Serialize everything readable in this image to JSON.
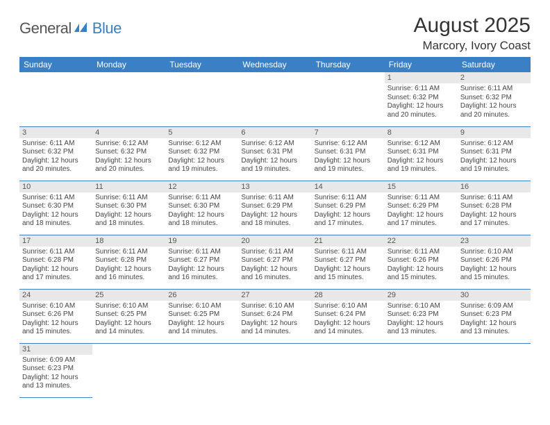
{
  "logo": {
    "general": "General",
    "blue": "Blue"
  },
  "title": "August 2025",
  "location": "Marcory, Ivory Coast",
  "header_bg": "#3b7fc4",
  "day_num_bg": "#e8e8e8",
  "weekdays": [
    "Sunday",
    "Monday",
    "Tuesday",
    "Wednesday",
    "Thursday",
    "Friday",
    "Saturday"
  ],
  "weeks": [
    [
      null,
      null,
      null,
      null,
      null,
      {
        "n": "1",
        "sunrise": "6:11 AM",
        "sunset": "6:32 PM",
        "daylight": "12 hours and 20 minutes."
      },
      {
        "n": "2",
        "sunrise": "6:11 AM",
        "sunset": "6:32 PM",
        "daylight": "12 hours and 20 minutes."
      }
    ],
    [
      {
        "n": "3",
        "sunrise": "6:11 AM",
        "sunset": "6:32 PM",
        "daylight": "12 hours and 20 minutes."
      },
      {
        "n": "4",
        "sunrise": "6:12 AM",
        "sunset": "6:32 PM",
        "daylight": "12 hours and 20 minutes."
      },
      {
        "n": "5",
        "sunrise": "6:12 AM",
        "sunset": "6:32 PM",
        "daylight": "12 hours and 19 minutes."
      },
      {
        "n": "6",
        "sunrise": "6:12 AM",
        "sunset": "6:31 PM",
        "daylight": "12 hours and 19 minutes."
      },
      {
        "n": "7",
        "sunrise": "6:12 AM",
        "sunset": "6:31 PM",
        "daylight": "12 hours and 19 minutes."
      },
      {
        "n": "8",
        "sunrise": "6:12 AM",
        "sunset": "6:31 PM",
        "daylight": "12 hours and 19 minutes."
      },
      {
        "n": "9",
        "sunrise": "6:12 AM",
        "sunset": "6:31 PM",
        "daylight": "12 hours and 19 minutes."
      }
    ],
    [
      {
        "n": "10",
        "sunrise": "6:11 AM",
        "sunset": "6:30 PM",
        "daylight": "12 hours and 18 minutes."
      },
      {
        "n": "11",
        "sunrise": "6:11 AM",
        "sunset": "6:30 PM",
        "daylight": "12 hours and 18 minutes."
      },
      {
        "n": "12",
        "sunrise": "6:11 AM",
        "sunset": "6:30 PM",
        "daylight": "12 hours and 18 minutes."
      },
      {
        "n": "13",
        "sunrise": "6:11 AM",
        "sunset": "6:29 PM",
        "daylight": "12 hours and 18 minutes."
      },
      {
        "n": "14",
        "sunrise": "6:11 AM",
        "sunset": "6:29 PM",
        "daylight": "12 hours and 17 minutes."
      },
      {
        "n": "15",
        "sunrise": "6:11 AM",
        "sunset": "6:29 PM",
        "daylight": "12 hours and 17 minutes."
      },
      {
        "n": "16",
        "sunrise": "6:11 AM",
        "sunset": "6:28 PM",
        "daylight": "12 hours and 17 minutes."
      }
    ],
    [
      {
        "n": "17",
        "sunrise": "6:11 AM",
        "sunset": "6:28 PM",
        "daylight": "12 hours and 17 minutes."
      },
      {
        "n": "18",
        "sunrise": "6:11 AM",
        "sunset": "6:28 PM",
        "daylight": "12 hours and 16 minutes."
      },
      {
        "n": "19",
        "sunrise": "6:11 AM",
        "sunset": "6:27 PM",
        "daylight": "12 hours and 16 minutes."
      },
      {
        "n": "20",
        "sunrise": "6:11 AM",
        "sunset": "6:27 PM",
        "daylight": "12 hours and 16 minutes."
      },
      {
        "n": "21",
        "sunrise": "6:11 AM",
        "sunset": "6:27 PM",
        "daylight": "12 hours and 15 minutes."
      },
      {
        "n": "22",
        "sunrise": "6:11 AM",
        "sunset": "6:26 PM",
        "daylight": "12 hours and 15 minutes."
      },
      {
        "n": "23",
        "sunrise": "6:10 AM",
        "sunset": "6:26 PM",
        "daylight": "12 hours and 15 minutes."
      }
    ],
    [
      {
        "n": "24",
        "sunrise": "6:10 AM",
        "sunset": "6:26 PM",
        "daylight": "12 hours and 15 minutes."
      },
      {
        "n": "25",
        "sunrise": "6:10 AM",
        "sunset": "6:25 PM",
        "daylight": "12 hours and 14 minutes."
      },
      {
        "n": "26",
        "sunrise": "6:10 AM",
        "sunset": "6:25 PM",
        "daylight": "12 hours and 14 minutes."
      },
      {
        "n": "27",
        "sunrise": "6:10 AM",
        "sunset": "6:24 PM",
        "daylight": "12 hours and 14 minutes."
      },
      {
        "n": "28",
        "sunrise": "6:10 AM",
        "sunset": "6:24 PM",
        "daylight": "12 hours and 14 minutes."
      },
      {
        "n": "29",
        "sunrise": "6:10 AM",
        "sunset": "6:23 PM",
        "daylight": "12 hours and 13 minutes."
      },
      {
        "n": "30",
        "sunrise": "6:09 AM",
        "sunset": "6:23 PM",
        "daylight": "12 hours and 13 minutes."
      }
    ],
    [
      {
        "n": "31",
        "sunrise": "6:09 AM",
        "sunset": "6:23 PM",
        "daylight": "12 hours and 13 minutes."
      },
      null,
      null,
      null,
      null,
      null,
      null
    ]
  ],
  "labels": {
    "sunrise": "Sunrise:",
    "sunset": "Sunset:",
    "daylight": "Daylight:"
  }
}
